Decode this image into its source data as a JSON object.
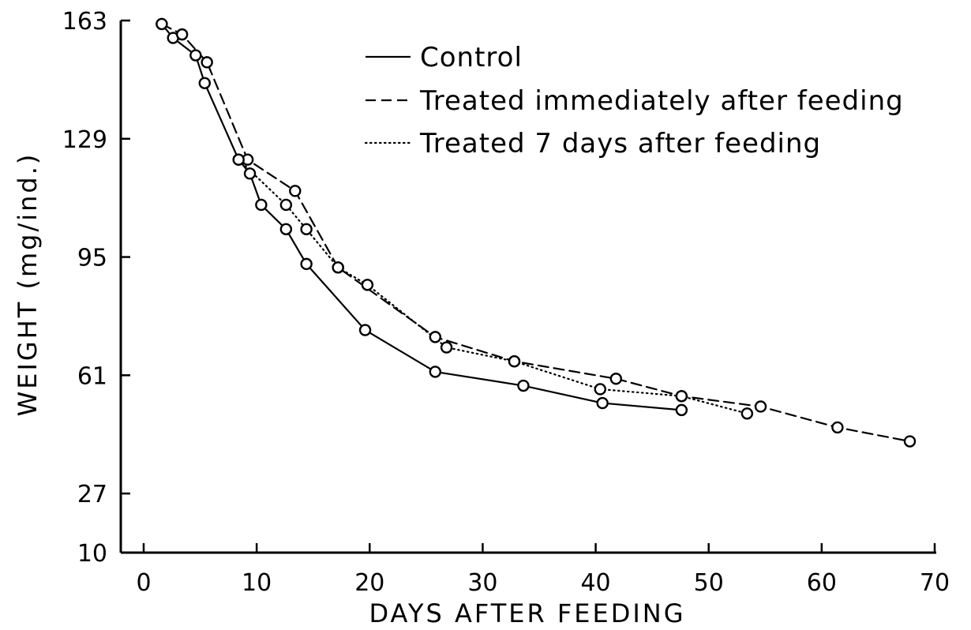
{
  "chart_data": {
    "type": "line",
    "xlabel": "DAYS AFTER FEEDING",
    "ylabel": "WEIGHT (mg/ind.)",
    "xlim": [
      0,
      70
    ],
    "ylim": [
      10,
      163
    ],
    "xticks": [
      0,
      10,
      20,
      30,
      40,
      50,
      60,
      70
    ],
    "yticks": [
      10,
      27,
      61,
      95,
      129,
      163
    ],
    "grid": false,
    "legend_position": "top-right",
    "series": [
      {
        "name": "Control",
        "style": "solid",
        "x": [
          1.6,
          2.6,
          4.6,
          5.4,
          8.4,
          9.4,
          10.4,
          12.6,
          14.4,
          19.6,
          25.8,
          33.6,
          40.6,
          47.6
        ],
        "y": [
          162,
          158,
          153,
          145,
          123,
          119,
          110,
          103,
          93,
          74,
          62,
          58,
          53,
          51
        ]
      },
      {
        "name": "Treated immediately after feeding",
        "style": "dashed",
        "x": [
          1.6,
          3.4,
          5.6,
          9.2,
          13.4,
          17.2,
          25.8,
          32.8,
          41.8,
          47.6,
          54.6,
          61.4,
          67.8
        ],
        "y": [
          162,
          159,
          151,
          123,
          114,
          92,
          72,
          65,
          60,
          55,
          52,
          46,
          42
        ]
      },
      {
        "name": "Treated 7 days after feeding",
        "style": "dotted",
        "x": [
          8.4,
          12.6,
          14.4,
          17.2,
          19.8,
          26.8,
          32.8,
          40.4,
          47.6,
          53.4
        ],
        "y": [
          123,
          110,
          103,
          92,
          87,
          69,
          65,
          57,
          55,
          50
        ]
      }
    ]
  }
}
